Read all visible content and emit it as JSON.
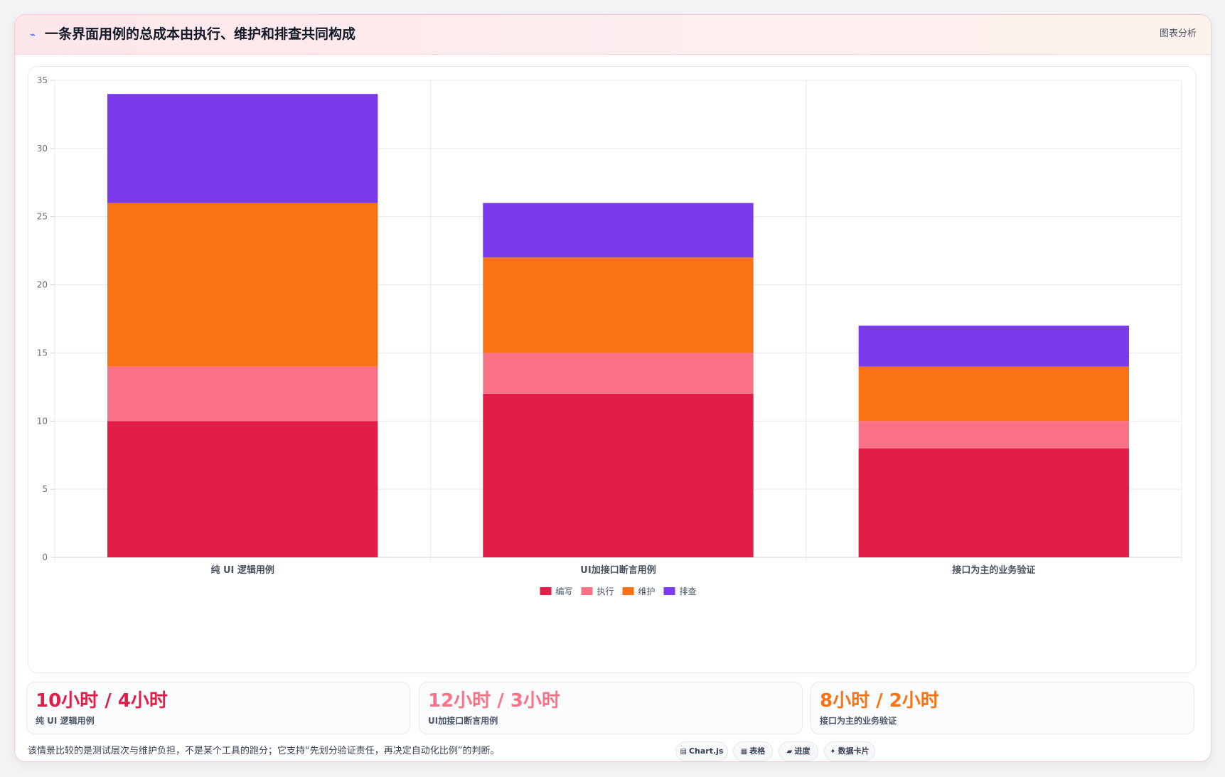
{
  "header": {
    "icon": "trend-line-icon",
    "title": "一条界面用例的总成本由执行、维护和排查共同构成",
    "badge": "图表分析"
  },
  "chart_data": {
    "type": "bar",
    "stacked": true,
    "categories": [
      "纯 UI 逻辑用例",
      "UI加接口断言用例",
      "接口为主的业务验证"
    ],
    "series": [
      {
        "name": "编写",
        "color": "#e11d48",
        "values": [
          10,
          12,
          8
        ]
      },
      {
        "name": "执行",
        "color": "#fb7185",
        "values": [
          4,
          3,
          2
        ]
      },
      {
        "name": "维护",
        "color": "#f97316",
        "values": [
          12,
          7,
          4
        ]
      },
      {
        "name": "排查",
        "color": "#7c3aed",
        "values": [
          8,
          4,
          3
        ]
      }
    ],
    "ylim": [
      0,
      35
    ],
    "yticks": [
      0,
      5,
      10,
      15,
      20,
      25,
      30,
      35
    ],
    "grid": true,
    "legend_position": "bottom"
  },
  "stats": [
    {
      "value": "10小时 / 4小时",
      "label": "纯 UI 逻辑用例",
      "color": "#e11d48"
    },
    {
      "value": "12小时 / 3小时",
      "label": "UI加接口断言用例",
      "color": "#fb7185"
    },
    {
      "value": "8小时 / 2小时",
      "label": "接口为主的业务验证",
      "color": "#f97316"
    }
  ],
  "footer": {
    "note": "该情景比较的是测试层次与维护负担，不是某个工具的跑分；它支持“先划分验证责任，再决定自动化比例”的判断。",
    "chips": [
      {
        "icon": "chart-icon",
        "glyph": "▤",
        "label": "Chart.js"
      },
      {
        "icon": "table-icon",
        "glyph": "▦",
        "label": "表格"
      },
      {
        "icon": "progress-icon",
        "glyph": "▰",
        "label": "进度"
      },
      {
        "icon": "data-card-icon",
        "glyph": "✦",
        "label": "数据卡片"
      }
    ]
  }
}
